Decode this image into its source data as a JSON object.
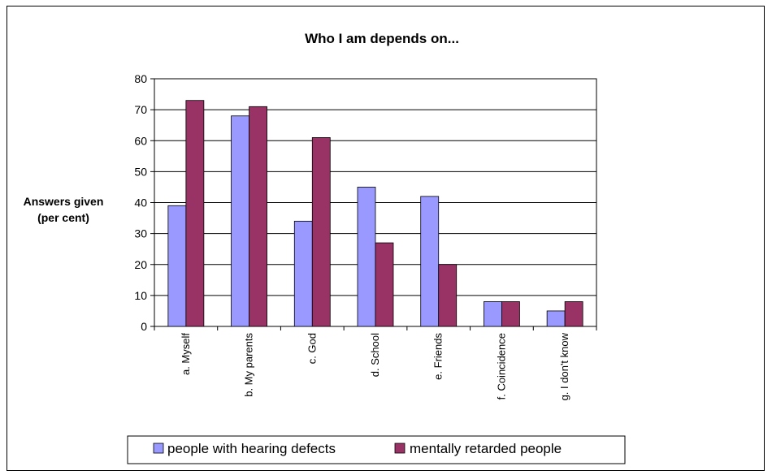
{
  "colors": {
    "series1": "#9999ff",
    "series2": "#993366",
    "grid": "#000000",
    "plot_bg": "#ffffff"
  },
  "chart_data": {
    "type": "bar",
    "title": "Who I am depends on...",
    "ylabel": [
      "Answers given",
      "(per cent)"
    ],
    "xlabel": "",
    "ylim": [
      0,
      80
    ],
    "yticks": [
      0,
      10,
      20,
      30,
      40,
      50,
      60,
      70,
      80
    ],
    "grid": true,
    "legend_position": "bottom",
    "categories": [
      "a. Myself",
      "b. My parents",
      "c. God",
      "d. School",
      "e. Friends",
      "f. Coincidence",
      "g. I don't know"
    ],
    "series": [
      {
        "name": "people with hearing defects",
        "values": [
          39,
          68,
          34,
          45,
          42,
          8,
          5
        ]
      },
      {
        "name": "mentally retarded people",
        "values": [
          73,
          71,
          61,
          27,
          20,
          8,
          8
        ]
      }
    ]
  }
}
